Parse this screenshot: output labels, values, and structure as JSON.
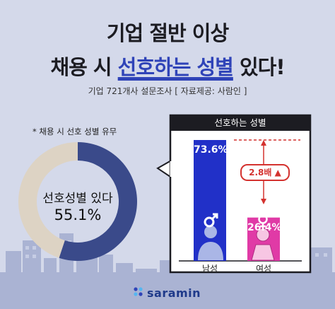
{
  "header": {
    "title_line1": "기업 절반 이상",
    "title_line2_prefix": "채용 시 ",
    "title_line2_highlight": "선호하는 성별",
    "title_line2_suffix": " 있다!",
    "source": "기업 721개사 설문조사 [ 자료제공: 사람인 ]"
  },
  "colors": {
    "navy": "#3a4a8a",
    "beige": "#ddd3c4",
    "blue_bar": "#2130c8",
    "pink_bar": "#e03aa6",
    "accent_red": "#d4322f"
  },
  "chart_data": [
    {
      "type": "pie",
      "title": "* 채용 시 선호 성별 유무",
      "center_label_line1": "선호성별 있다",
      "center_label_line2": "55.1%",
      "slices": [
        {
          "label": "선호성별 있다",
          "value": 55.1,
          "color": "#3a4a8a"
        },
        {
          "label": "",
          "value": 44.9,
          "color": "#ddd3c4"
        }
      ]
    },
    {
      "type": "bar",
      "title": "선호하는 성별",
      "categories": [
        "남성",
        "여성"
      ],
      "values": [
        73.6,
        26.4
      ],
      "value_labels": [
        "73.6%",
        "26.4%"
      ],
      "colors": [
        "#2130c8",
        "#e03aa6"
      ],
      "ylim": [
        0,
        73.6
      ],
      "annotation": "2.8배",
      "icons": [
        "male-icon",
        "female-icon"
      ]
    }
  ],
  "footer": {
    "brand": "saramin",
    "brand_icon": "saramin-dots-icon"
  }
}
